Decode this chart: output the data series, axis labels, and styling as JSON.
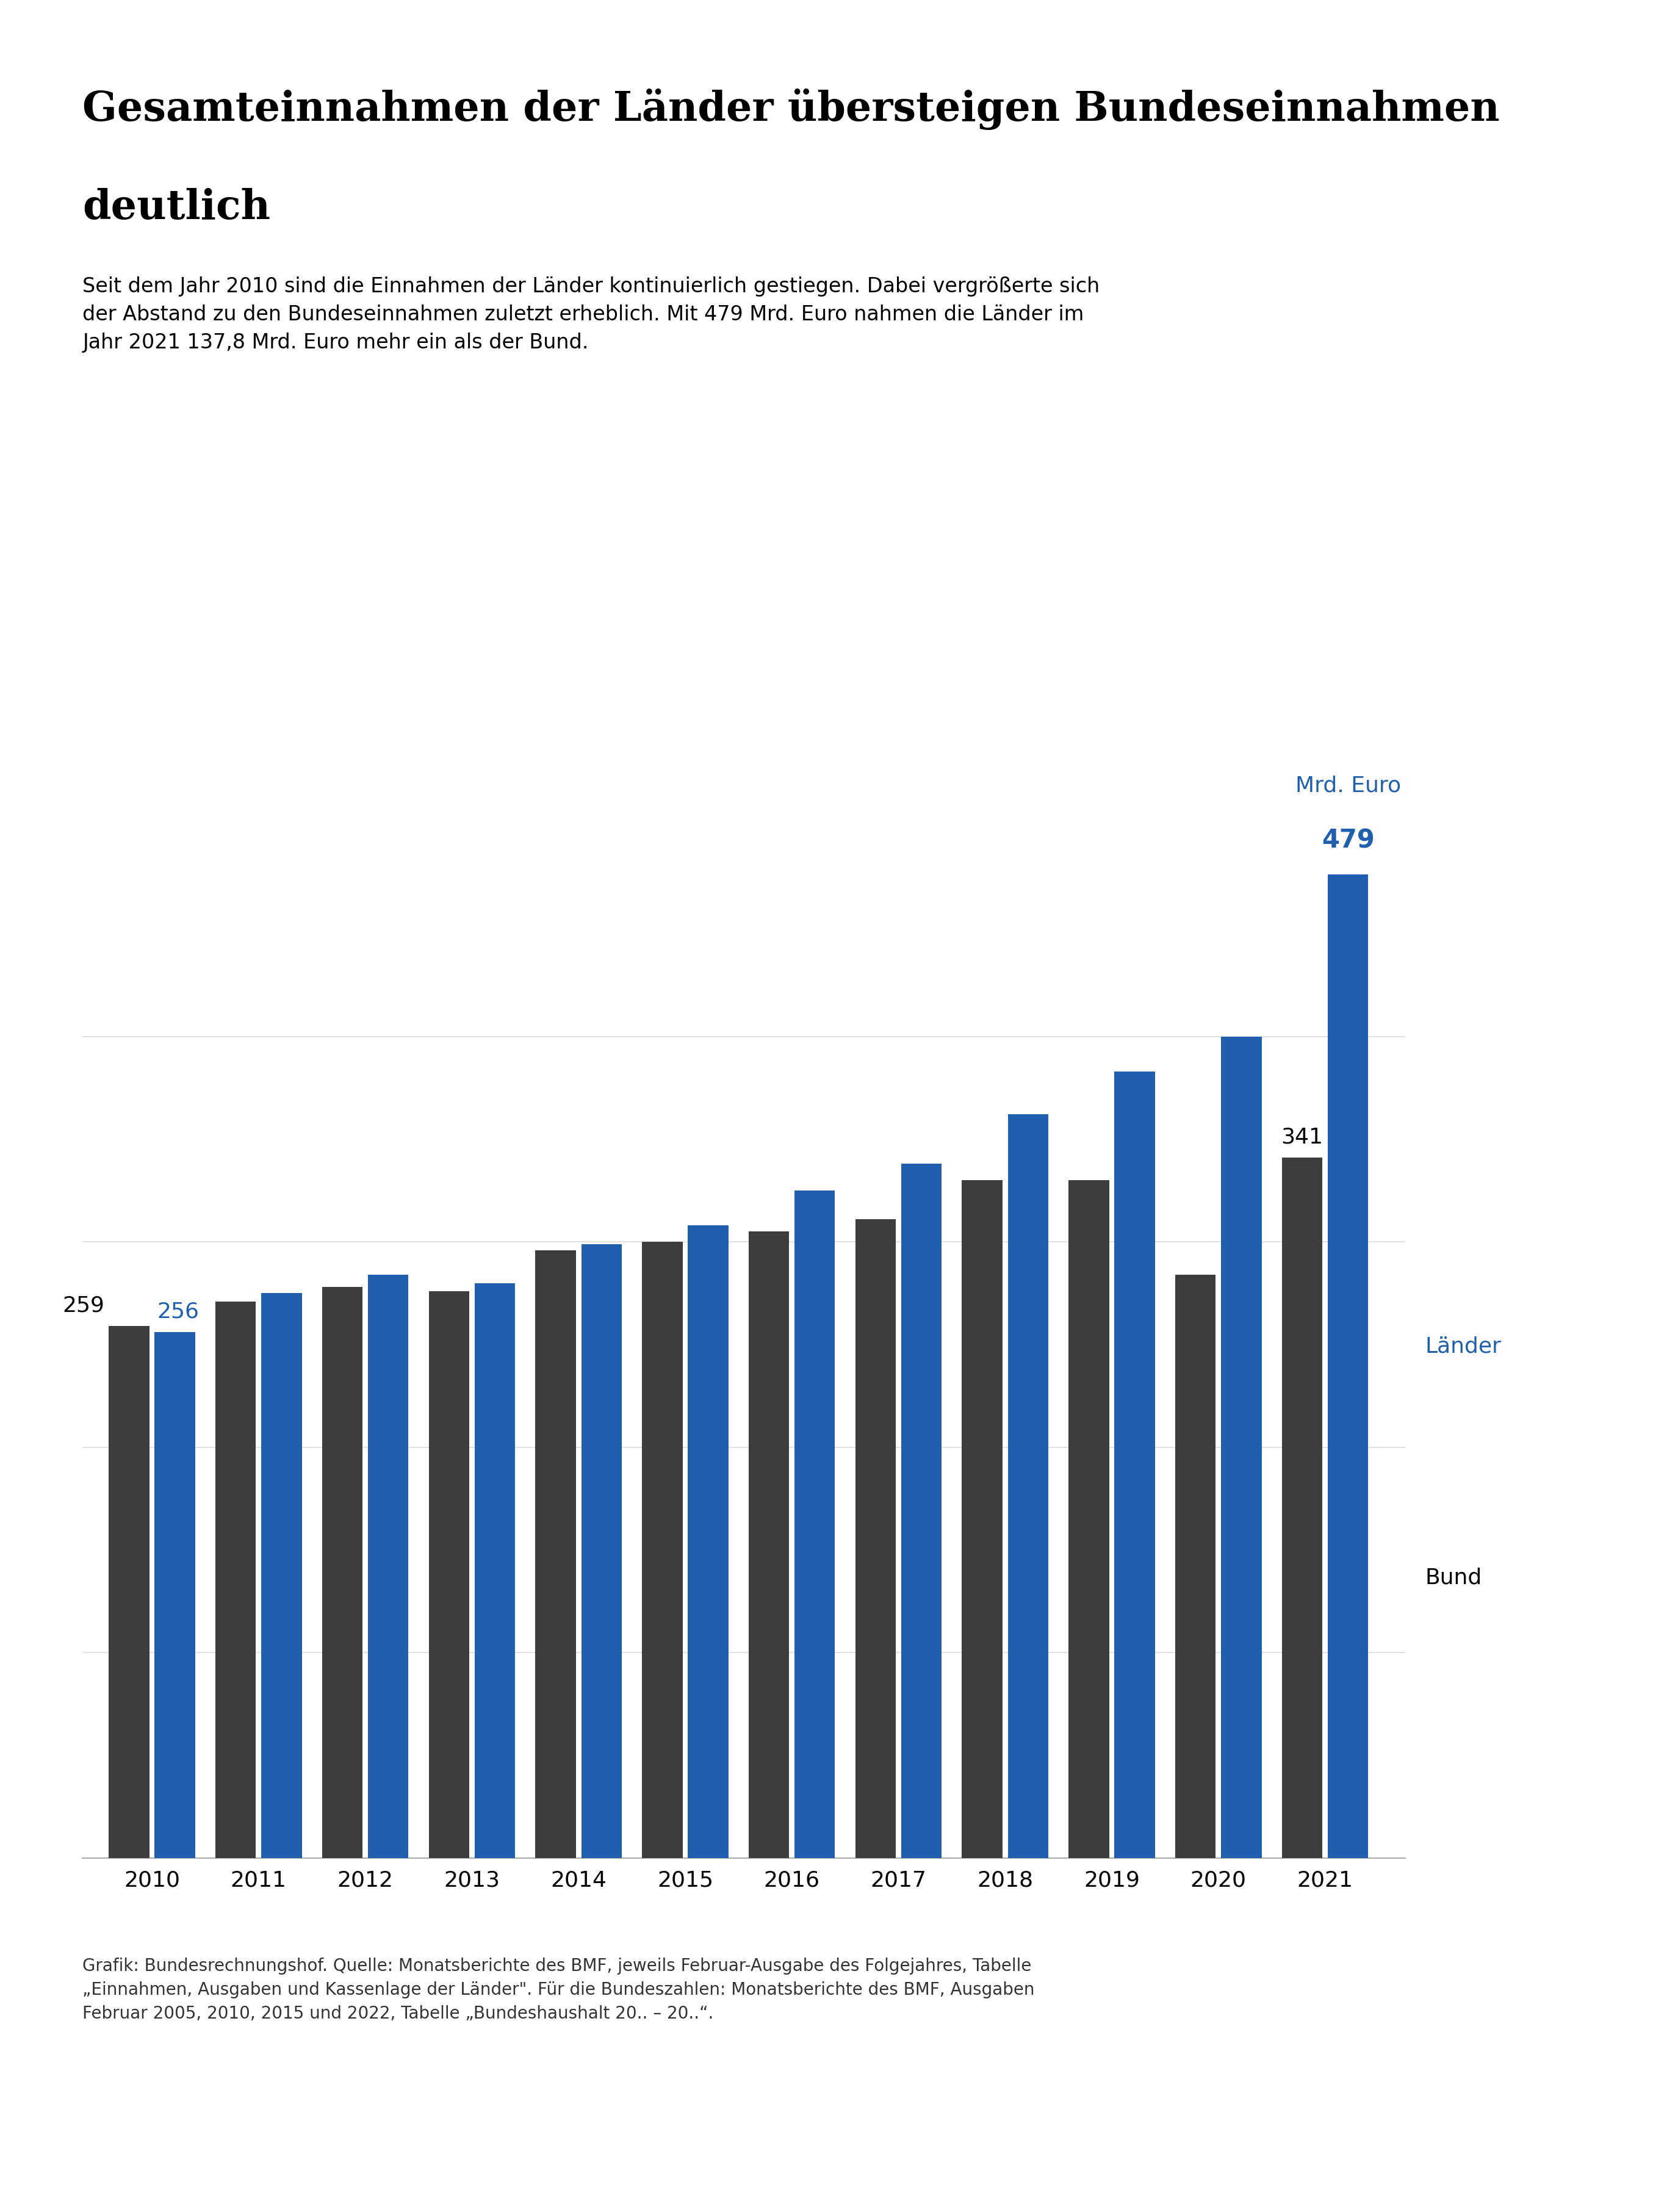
{
  "title_line1": "Gesamteinnahmen der Länder übersteigen Bundeseinnahmen",
  "title_line2": "deutlich",
  "subtitle": "Seit dem Jahr 2010 sind die Einnahmen der Länder kontinuierlich gestiegen. Dabei vergrößerte sich\nder Abstand zu den Bundeseinnahmen zuletzt erheblich. Mit 479 Mrd. Euro nahmen die Länder im\nJahr 2021 137,8 Mrd. Euro mehr ein als der Bund.",
  "footnote": "Grafik: Bundesrechnungshof. Quelle: Monatsberichte des BMF, jeweils Februar-Ausgabe des Folgejahres, Tabelle\n„Einnahmen, Ausgaben und Kassenlage der Länder\". Für die Bundeszahlen: Monatsberichte des BMF, Ausgaben\nFebruar 2005, 2010, 2015 und 2022, Tabelle „Bundeshaushalt 20.. – 20..“.",
  "years": [
    2010,
    2011,
    2012,
    2013,
    2014,
    2015,
    2016,
    2017,
    2018,
    2019,
    2020,
    2021
  ],
  "laender": [
    256,
    275,
    284,
    280,
    299,
    308,
    325,
    338,
    362,
    383,
    400,
    479
  ],
  "bund": [
    259,
    271,
    278,
    276,
    296,
    300,
    305,
    311,
    330,
    330,
    284,
    341
  ],
  "laender_color": "#1F5FAD",
  "bund_color": "#3D3D3D",
  "label_laender": "Länder",
  "label_bund": "Bund",
  "annotation_bund_2021": "341",
  "annotation_bund_2010": "259",
  "annotation_laender_2010": "256",
  "background_color": "#FFFFFF",
  "ylim_min": 0,
  "ylim_max": 560
}
